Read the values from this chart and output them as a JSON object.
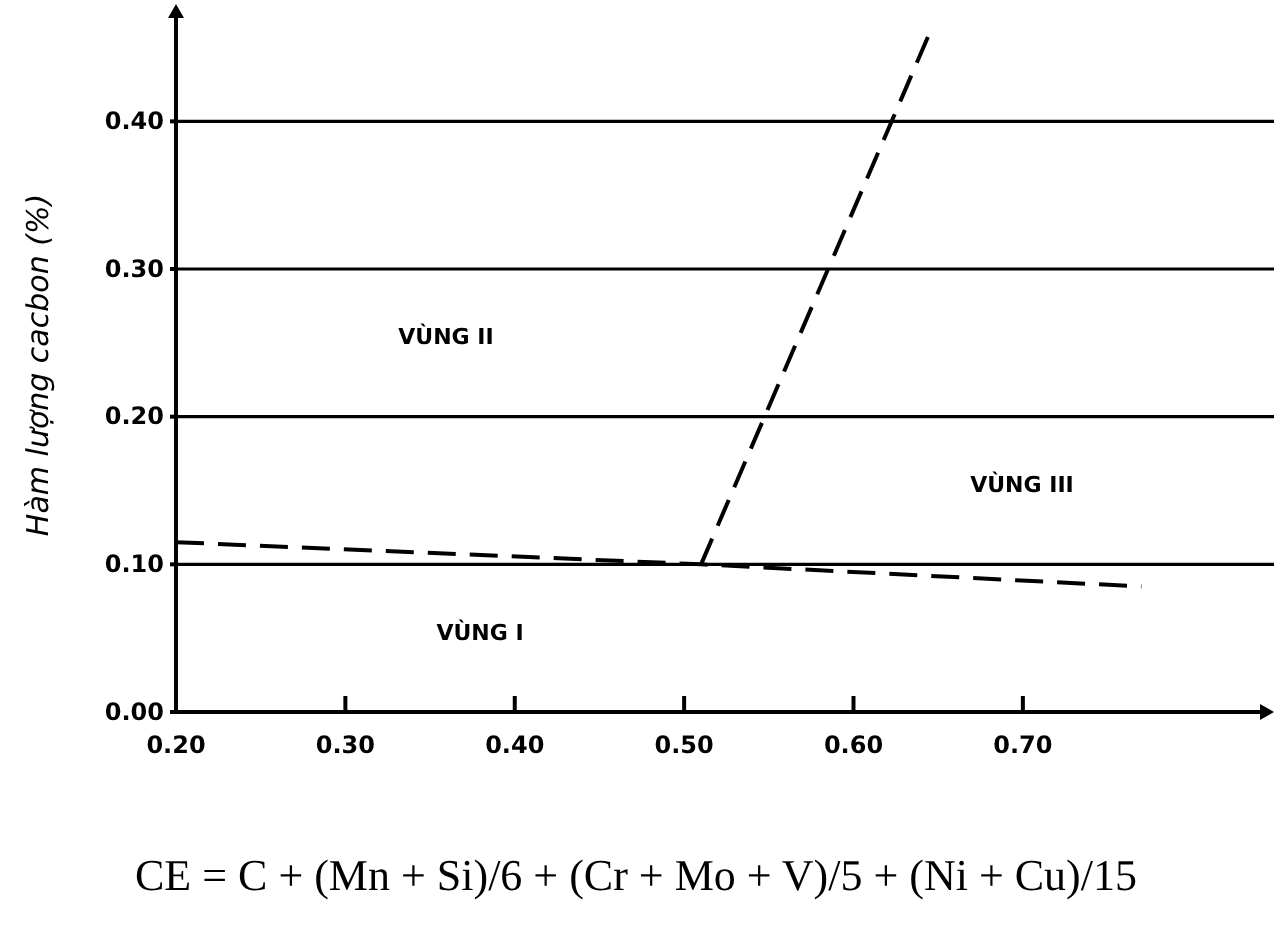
{
  "chart_data": {
    "type": "line",
    "ylabel": "Hàm lượng cacbon (%)",
    "xlim": [
      0.2,
      0.84
    ],
    "ylim": [
      0,
      0.47
    ],
    "xticks": [
      {
        "value": 0.2,
        "label": "0.20"
      },
      {
        "value": 0.3,
        "label": "0.30"
      },
      {
        "value": 0.4,
        "label": "0.40"
      },
      {
        "value": 0.5,
        "label": "0.50"
      },
      {
        "value": 0.6,
        "label": "0.60"
      },
      {
        "value": 0.7,
        "label": "0.70"
      }
    ],
    "yticks": [
      {
        "value": 0,
        "label": "0.00"
      },
      {
        "value": 0.1,
        "label": "0.10"
      },
      {
        "value": 0.2,
        "label": "0.20"
      },
      {
        "value": 0.3,
        "label": "0.30"
      },
      {
        "value": 0.4,
        "label": "0.40"
      }
    ],
    "grid": "y",
    "marker": "none",
    "line_style": "dashed",
    "series": [
      {
        "color": "#000000",
        "x": [
          0.2,
          0.51,
          0.77
        ],
        "values": [
          0.115,
          0.1,
          0.085
        ]
      },
      {
        "color": "#000000",
        "x": [
          0.51,
          0.645
        ],
        "values": [
          0.1,
          0.46
        ]
      }
    ],
    "annotations": [
      "VÙNG I",
      "VÙNG II",
      "VÙNG III",
      "CE = C + (Mn + Si)/6 + (Cr + Mo + V)/5 + (Ni + Cu)/15"
    ]
  }
}
